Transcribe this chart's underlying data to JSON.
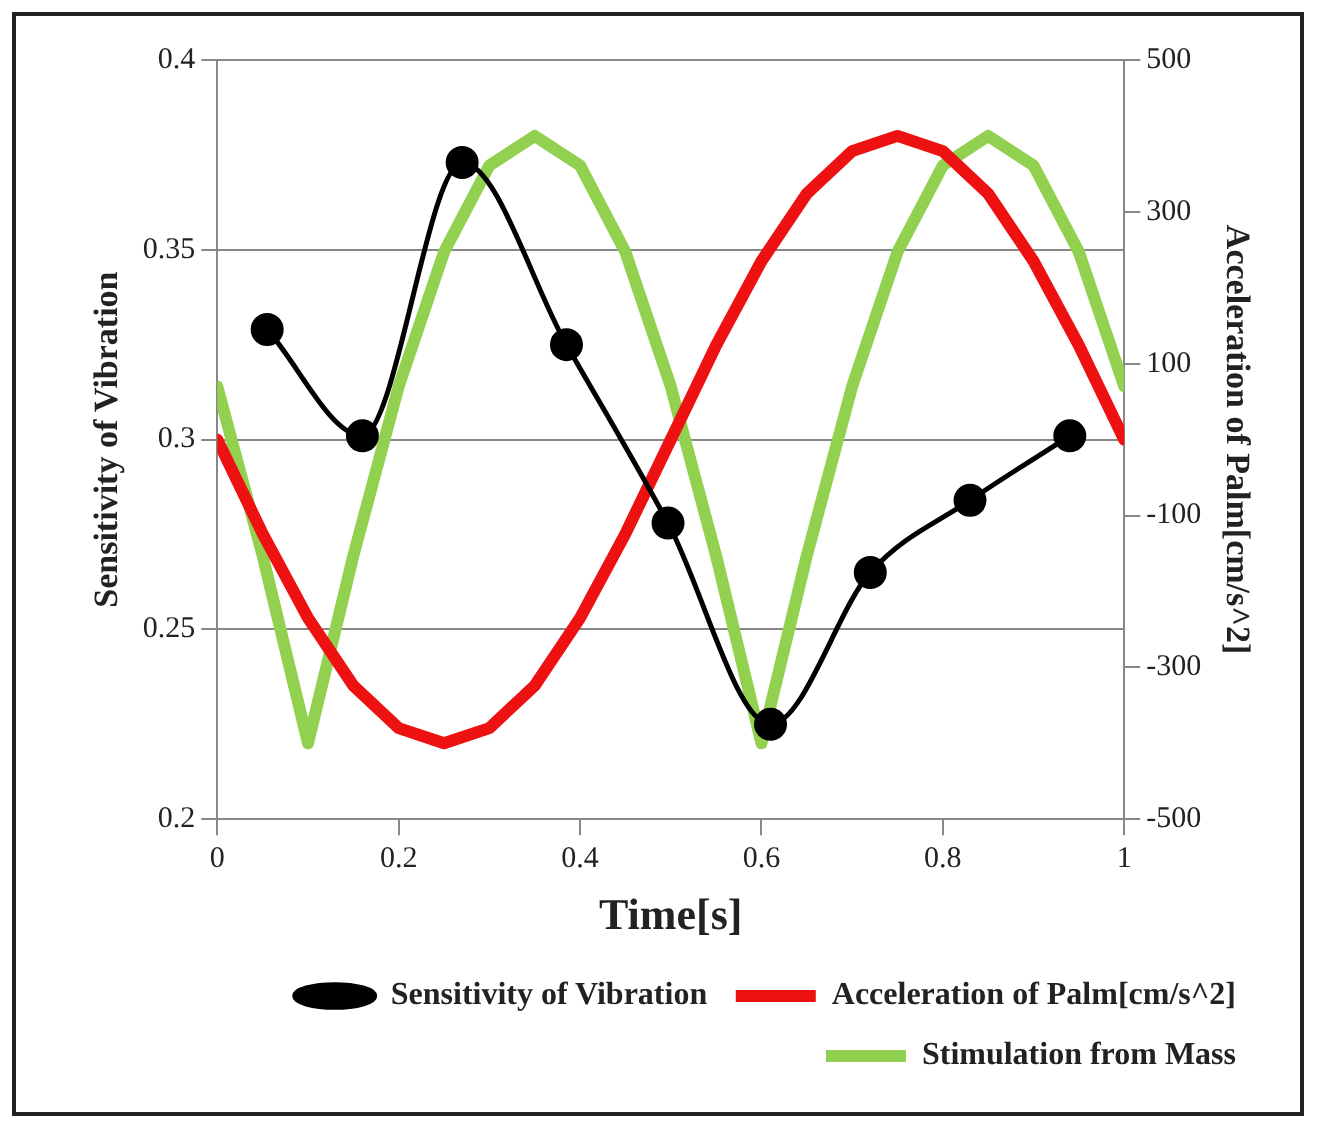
{
  "chart_data": {
    "type": "line",
    "xlabel": "Time[s]",
    "ylabel": "Sensitivity of Vibration",
    "y2label": "Acceleration of Palm[cm/s^2]",
    "xlim": [
      0,
      1
    ],
    "xticks": [
      0,
      0.2,
      0.4,
      0.6,
      0.8,
      1
    ],
    "ylim": [
      0.2,
      0.4
    ],
    "yticks": [
      0.2,
      0.25,
      0.3,
      0.35,
      0.4
    ],
    "y2lim": [
      -500,
      500
    ],
    "y2ticks": [
      -500,
      -300,
      -100,
      100,
      300,
      500
    ],
    "grid": "y",
    "legend": "bottom right",
    "series": [
      {
        "name": "Sensitivity of Vibration",
        "color": "#000000",
        "marker": "circle",
        "x": [
          0.055,
          0.16,
          0.27,
          0.385,
          0.497,
          0.61,
          0.72,
          0.83,
          0.94
        ],
        "values": [
          0.329,
          0.301,
          0.373,
          0.325,
          0.278,
          0.225,
          0.265,
          0.284,
          0.301
        ]
      },
      {
        "name": "Acceleration of Palm[cm/s^2]",
        "color": "#ee1111",
        "axis": "y2",
        "marker": "none",
        "x": [
          0,
          0.05,
          0.1,
          0.15,
          0.2,
          0.25,
          0.3,
          0.35,
          0.4,
          0.45,
          0.5,
          0.55,
          0.6,
          0.65,
          0.7,
          0.75,
          0.8,
          0.85,
          0.9,
          0.95,
          1
        ],
        "values": [
          0,
          -124,
          -235,
          -324,
          -380,
          -400,
          -380,
          -324,
          -235,
          -124,
          0,
          124,
          235,
          324,
          380,
          400,
          380,
          324,
          235,
          124,
          0
        ]
      },
      {
        "name": "Stimulation from Mass",
        "color": "#92d050",
        "axis": "y2",
        "marker": "none",
        "x": [
          0,
          0.05,
          0.1,
          0.15,
          0.2,
          0.25,
          0.3,
          0.35,
          0.4,
          0.45,
          0.5,
          0.55,
          0.6,
          0.65,
          0.7,
          0.75,
          0.8,
          0.85,
          0.9,
          0.95,
          1
        ],
        "values": [
          70,
          -153,
          -400,
          -153,
          70,
          247,
          361,
          400,
          361,
          247,
          70,
          -153,
          -400,
          -153,
          70,
          247,
          361,
          400,
          361,
          247,
          70
        ]
      }
    ]
  }
}
